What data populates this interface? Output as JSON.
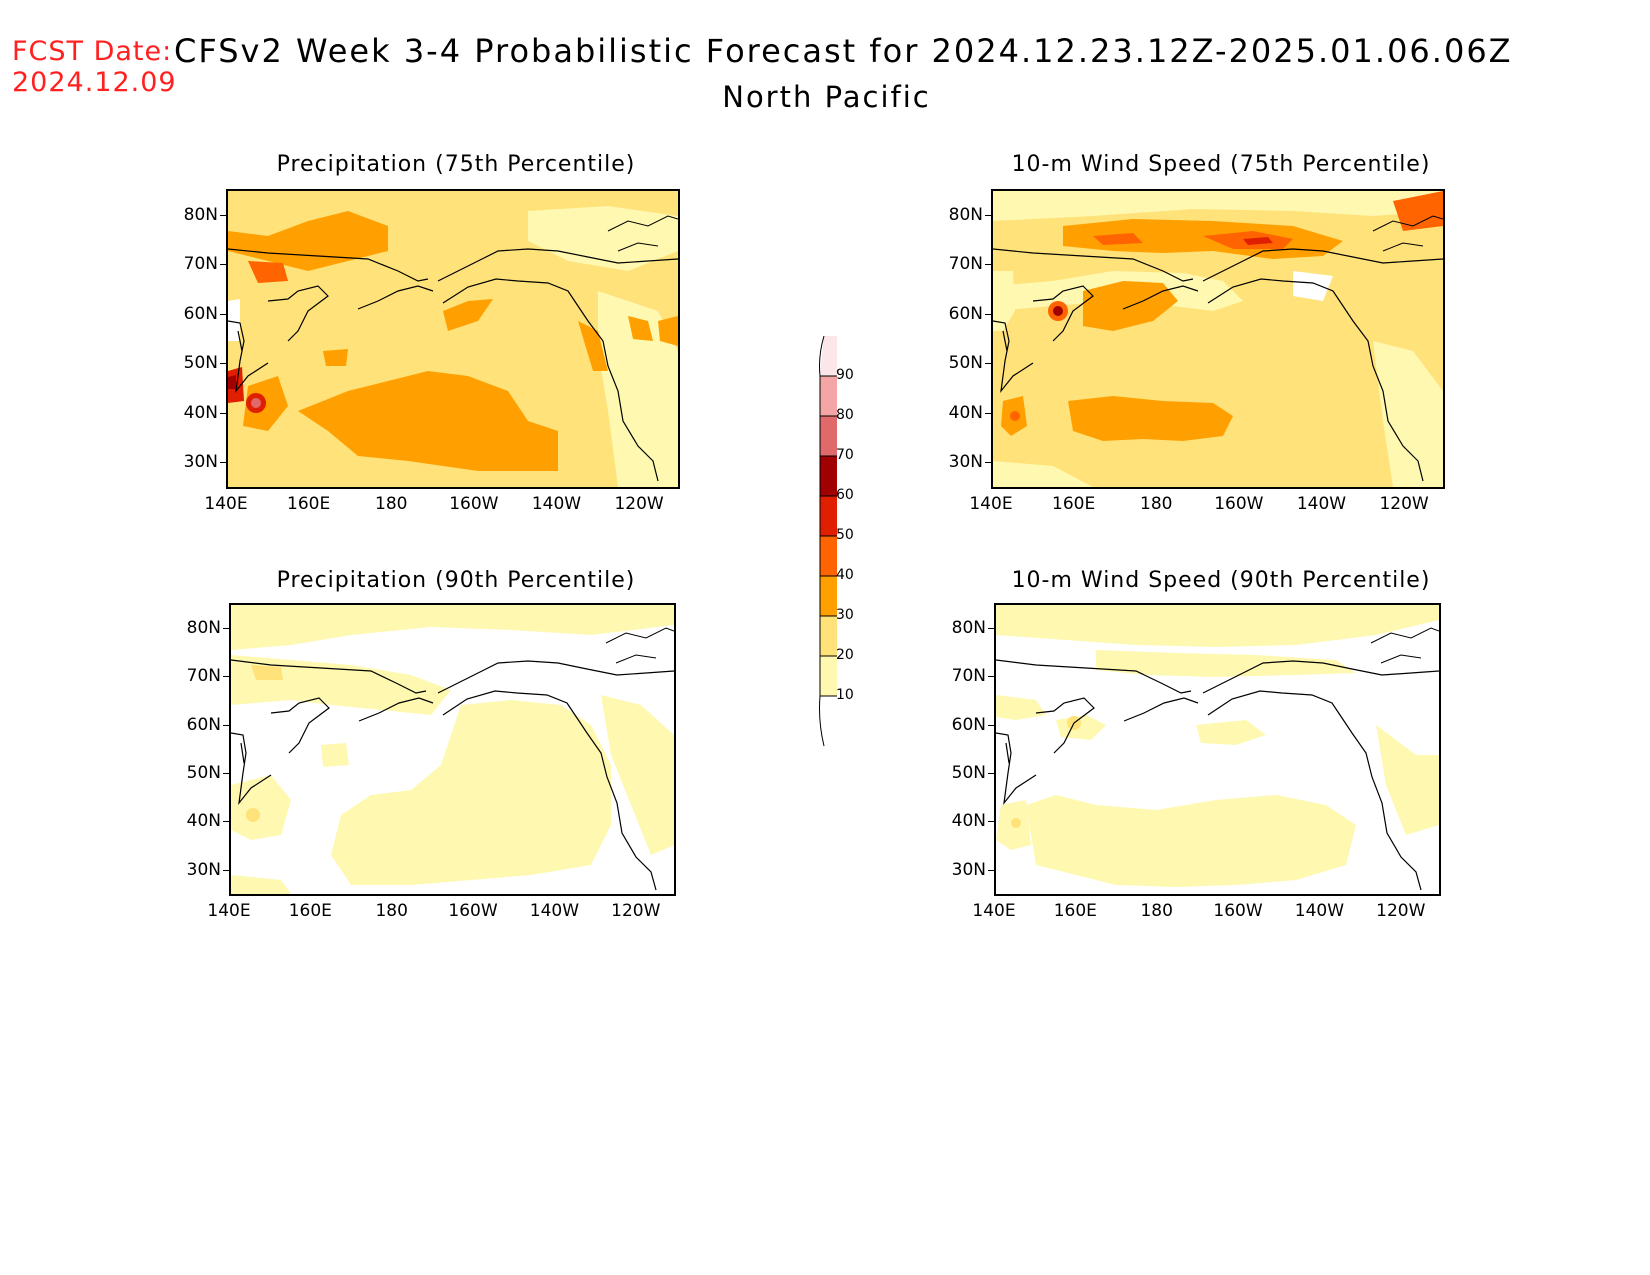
{
  "header": {
    "fcst_label": "FCST Date:",
    "fcst_date": "2024.12.09",
    "title": "CFSv2 Week 3-4 Probabilistic Forecast for 2024.12.23.12Z-2025.01.06.06Z",
    "subtitle": "North Pacific"
  },
  "panels": [
    {
      "title": "Precipitation (75th Percentile)"
    },
    {
      "title": "10-m Wind Speed (75th Percentile)"
    },
    {
      "title": "Precipitation (90th Percentile)"
    },
    {
      "title": "10-m Wind Speed (90th Percentile)"
    }
  ],
  "axes": {
    "lat_labels": [
      "80N",
      "70N",
      "60N",
      "50N",
      "40N",
      "30N"
    ],
    "lon_labels": [
      "140E",
      "160E",
      "180",
      "160W",
      "140W",
      "120W"
    ]
  },
  "colorbar": {
    "levels": [
      "90",
      "80",
      "70",
      "60",
      "50",
      "40",
      "30",
      "20",
      "10"
    ],
    "colors": {
      "10-20": "#fff8b0",
      "20-30": "#ffe27a",
      "30-40": "#ffa000",
      "40-50": "#ff6400",
      "50-60": "#e01e00",
      "60-70": "#a00000",
      "70-80": "#e06a6a",
      "80-90": "#f4a6a6",
      "90+": "#fde6ea"
    }
  },
  "colors": {
    "fcst_text": "#ff2020",
    "coastline": "#000000"
  }
}
